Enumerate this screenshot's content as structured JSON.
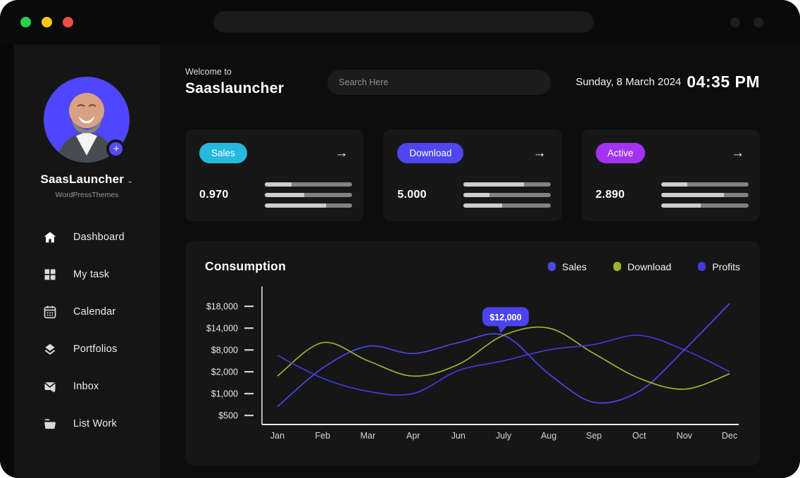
{
  "titlebar": {
    "traffic_colors": {
      "green": "#23d34e",
      "yellow": "#ffc90f",
      "red": "#ef4d45"
    }
  },
  "sidebar": {
    "profile": {
      "name": "SaasLauncher",
      "subtitle": "WordPressThemes",
      "avatar_bg": "#4f46ff"
    },
    "nav": [
      {
        "label": "Dashboard",
        "icon": "home-icon"
      },
      {
        "label": "My task",
        "icon": "grid-icon"
      },
      {
        "label": "Calendar",
        "icon": "calendar-icon"
      },
      {
        "label": "Portfolios",
        "icon": "layers-icon"
      },
      {
        "label": "Inbox",
        "icon": "inbox-icon"
      },
      {
        "label": "List Work",
        "icon": "folder-icon"
      }
    ]
  },
  "header": {
    "welcome": "Welcome to",
    "brand": "Saaslauncher",
    "search_placeholder": "Search Here",
    "date": "Sunday, 8 March 2024",
    "time": "04:35 PM"
  },
  "cards": [
    {
      "badge": "Sales",
      "badge_color": "#26b9de",
      "value": "0.970",
      "bars": [
        30,
        45,
        70
      ]
    },
    {
      "badge": "Download",
      "badge_color": "#4f46f2",
      "value": "5.000",
      "bars": [
        70,
        30,
        45
      ]
    },
    {
      "badge": "Active",
      "badge_color": "#a233f2",
      "value": "2.890",
      "bars": [
        30,
        72,
        45
      ]
    }
  ],
  "chart_data": {
    "type": "line",
    "title": "Consumption",
    "x_labels": [
      "Jan",
      "Feb",
      "Mar",
      "Apr",
      "Jun",
      "July",
      "Aug",
      "Sep",
      "Oct",
      "Nov",
      "Dec"
    ],
    "y_ticks": [
      {
        "label": "$18,000",
        "value": 18000
      },
      {
        "label": "$14,000",
        "value": 14000
      },
      {
        "label": "$8,000",
        "value": 8000
      },
      {
        "label": "$2,000",
        "value": 2000
      },
      {
        "label": "$1,000",
        "value": 1000
      },
      {
        "label": "$500",
        "value": 500
      }
    ],
    "series": [
      {
        "name": "Sales",
        "color": "#4f46e8",
        "values": [
          700,
          3000,
          9000,
          7000,
          10000,
          12000,
          1900,
          800,
          1100,
          8000,
          18500
        ]
      },
      {
        "name": "Download",
        "color": "#9ab52c",
        "values": [
          1800,
          10000,
          5000,
          1800,
          4000,
          12000,
          14000,
          7000,
          1700,
          1200,
          1900
        ]
      },
      {
        "name": "Profits",
        "color": "#4538dd",
        "values": [
          6500,
          1700,
          1100,
          1000,
          2300,
          5000,
          8000,
          9500,
          12000,
          8000,
          2000
        ]
      }
    ],
    "annotation": {
      "series": "Sales",
      "month": "July",
      "label": "$12,000",
      "color": "#4b43f0"
    },
    "legend_position": "top-right",
    "grid": false
  }
}
